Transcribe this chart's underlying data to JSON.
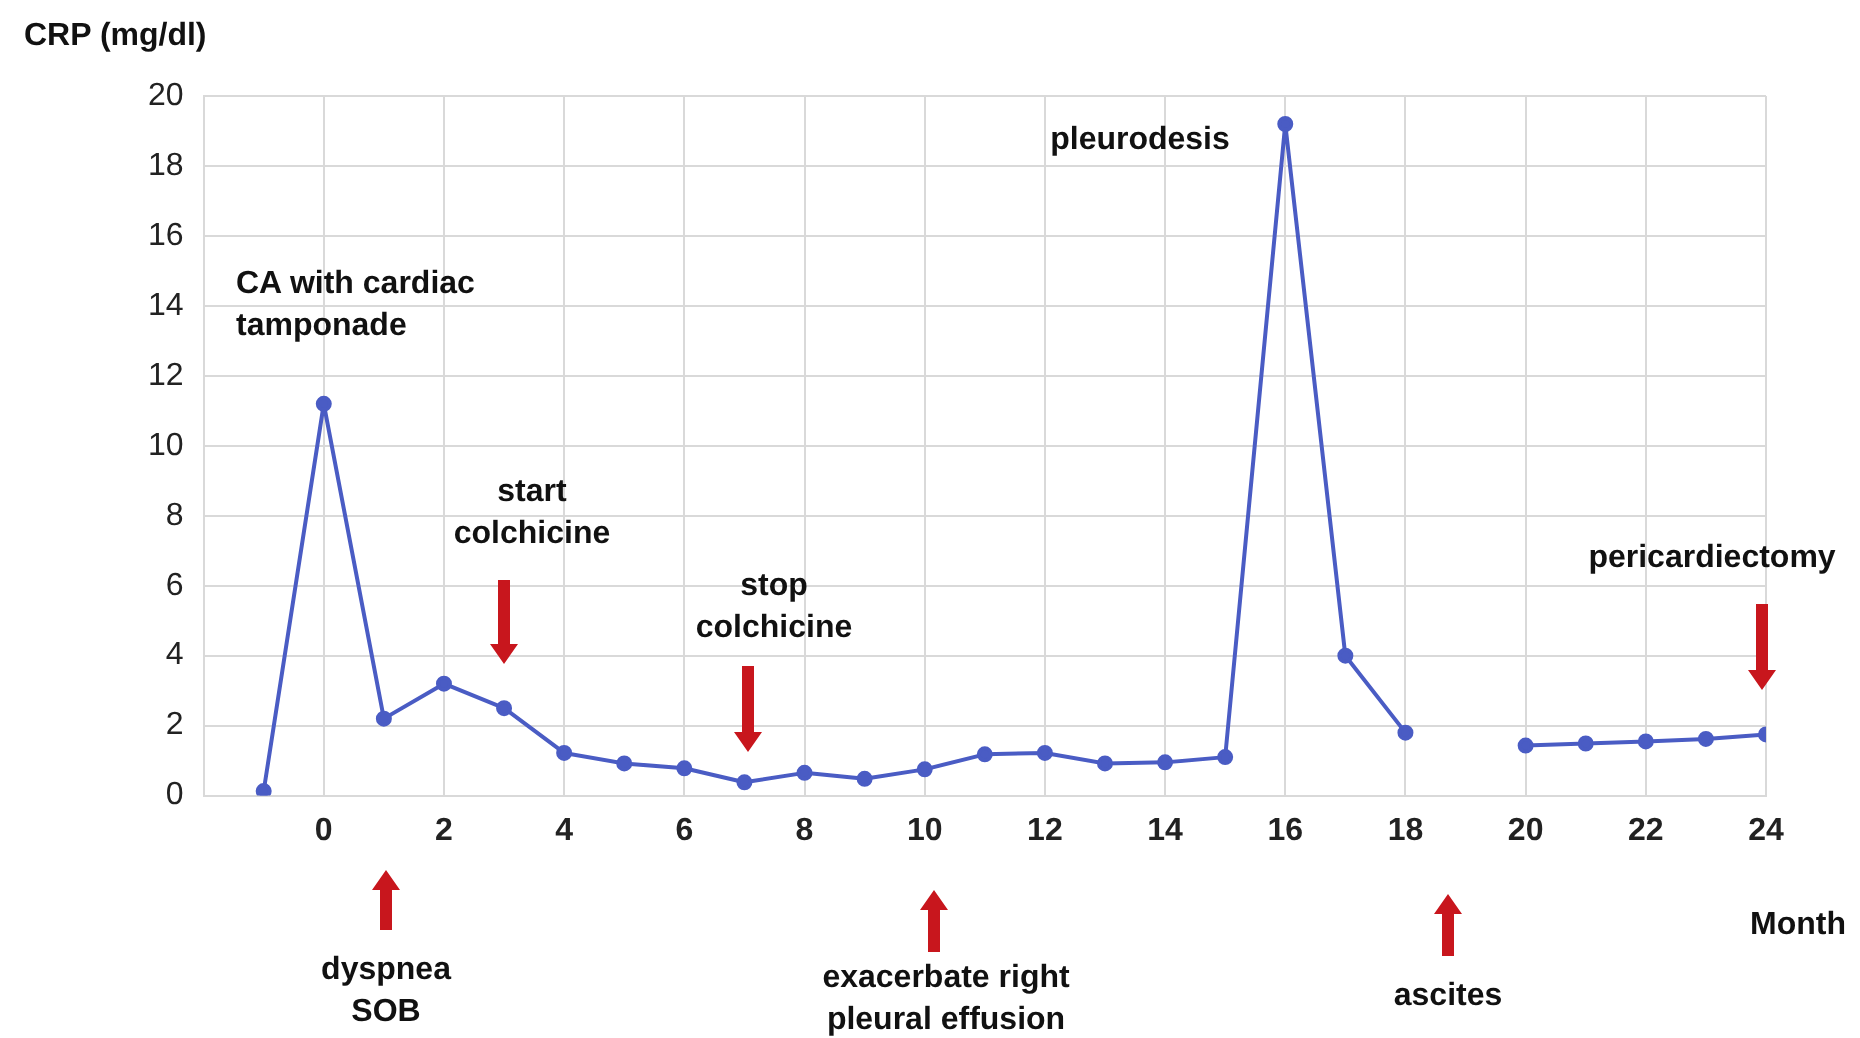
{
  "chart_data": {
    "type": "line",
    "ylabel": "CRP (mg/dl)",
    "xlabel": "Month",
    "x": [
      -1,
      0,
      1,
      2,
      3,
      4,
      5,
      6,
      7,
      8,
      9,
      10,
      11,
      12,
      13,
      14,
      15,
      16,
      17,
      18,
      19,
      20,
      21,
      22,
      23,
      24
    ],
    "series": [
      {
        "color": "#4a5cc4",
        "values": [
          0.13,
          11.2,
          2.2,
          3.2,
          2.5,
          1.22,
          0.92,
          0.78,
          0.38,
          0.65,
          0.48,
          0.75,
          1.18,
          1.22,
          0.92,
          0.95,
          1.1,
          19.2,
          4.0,
          1.8,
          null,
          1.43,
          1.49,
          1.55,
          1.62,
          1.75
        ]
      }
    ],
    "xlim": [
      -2,
      24
    ],
    "xticks": [
      0,
      2,
      4,
      6,
      8,
      10,
      12,
      14,
      16,
      18,
      20,
      22,
      24
    ],
    "ylim": [
      0,
      20
    ],
    "yticks": [
      0,
      2,
      4,
      6,
      8,
      10,
      12,
      14,
      16,
      18,
      20
    ],
    "grid": true,
    "marker": "circle",
    "line_style": "solid",
    "legend": false,
    "annotations": [
      "CA with cardiac tamponade",
      "start colchicine",
      "stop colchicine",
      "pleurodesis",
      "pericardiectomy",
      "dyspnea SOB",
      "exacerbate right pleural effusion",
      "ascites"
    ]
  }
}
